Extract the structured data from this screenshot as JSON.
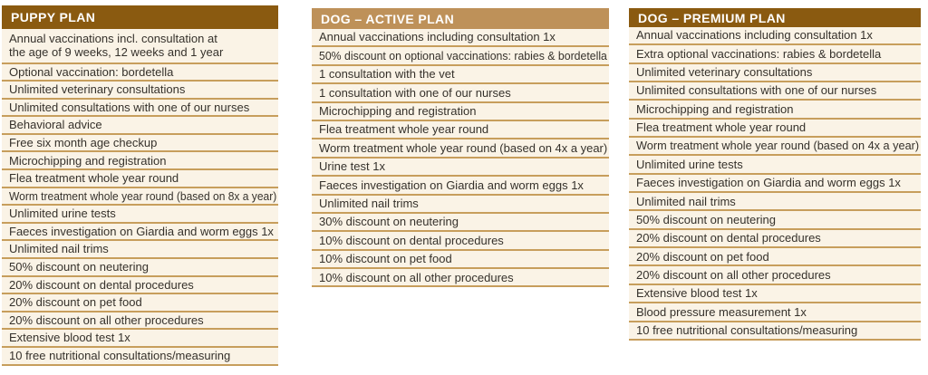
{
  "colors": {
    "header_dark": "#8A5A10",
    "header_tan": "#BE9159",
    "row_bg": "#FAF3E6",
    "divider": "#C79E5C",
    "text": "#35312B"
  },
  "plans": [
    {
      "name": "PUPPY PLAN",
      "header_variant": "dark",
      "rows": [
        [
          "Annual vaccinations incl. consultation at",
          "the age of 9 weeks, 12 weeks and 1 year"
        ],
        [
          "Optional vaccination: bordetella"
        ],
        [
          "Unlimited veterinary consultations"
        ],
        [
          "Unlimited consultations with one of our nurses"
        ],
        [
          "Behavioral advice"
        ],
        [
          "Free six month age checkup"
        ],
        [
          "Microchipping and registration"
        ],
        [
          "Flea treatment whole year round"
        ],
        [
          "Worm treatment whole year round (based on 8x a year)"
        ],
        [
          "Unlimited urine tests"
        ],
        [
          "Faeces investigation on Giardia and worm eggs 1x"
        ],
        [
          "Unlimited nail trims"
        ],
        [
          "50% discount on neutering"
        ],
        [
          "20% discount on dental procedures"
        ],
        [
          "20% discount on pet food"
        ],
        [
          "20% discount on all other procedures"
        ],
        [
          "Extensive blood test 1x"
        ],
        [
          "10 free nutritional consultations/measuring"
        ]
      ]
    },
    {
      "name": "DOG – ACTIVE PLAN",
      "header_variant": "tan",
      "rows": [
        [
          "Annual vaccinations including consultation 1x"
        ],
        [
          "50% discount on optional vaccinations: rabies & bordetella"
        ],
        [
          "1 consultation with the vet"
        ],
        [
          "1 consultation with one of our nurses"
        ],
        [
          "Microchipping and registration"
        ],
        [
          "Flea treatment whole year round"
        ],
        [
          "Worm treatment whole year round (based on 4x a year)"
        ],
        [
          "Urine test 1x"
        ],
        [
          "Faeces investigation on Giardia and worm eggs 1x"
        ],
        [
          "Unlimited nail trims"
        ],
        [
          "30% discount on neutering"
        ],
        [
          "10% discount on dental procedures"
        ],
        [
          "10% discount on pet food"
        ],
        [
          "10% discount on all other procedures"
        ]
      ]
    },
    {
      "name": "DOG – PREMIUM PLAN",
      "header_variant": "dark",
      "rows": [
        [
          "Annual vaccinations including consultation 1x"
        ],
        [
          "Extra optional vaccinations: rabies & bordetella"
        ],
        [
          "Unlimited veterinary consultations"
        ],
        [
          "Unlimited consultations with one of our nurses"
        ],
        [
          "Microchipping and registration"
        ],
        [
          "Flea treatment whole year round"
        ],
        [
          "Worm treatment whole year round (based on 4x a year)"
        ],
        [
          "Unlimited urine tests"
        ],
        [
          "Faeces investigation on Giardia and worm eggs 1x"
        ],
        [
          "Unlimited nail trims"
        ],
        [
          "50% discount on neutering"
        ],
        [
          "20% discount on dental procedures"
        ],
        [
          "20% discount on pet food"
        ],
        [
          "20% discount on all other procedures"
        ],
        [
          "Extensive blood test 1x"
        ],
        [
          "Blood pressure measurement 1x"
        ],
        [
          "10 free nutritional consultations/measuring"
        ]
      ]
    }
  ]
}
